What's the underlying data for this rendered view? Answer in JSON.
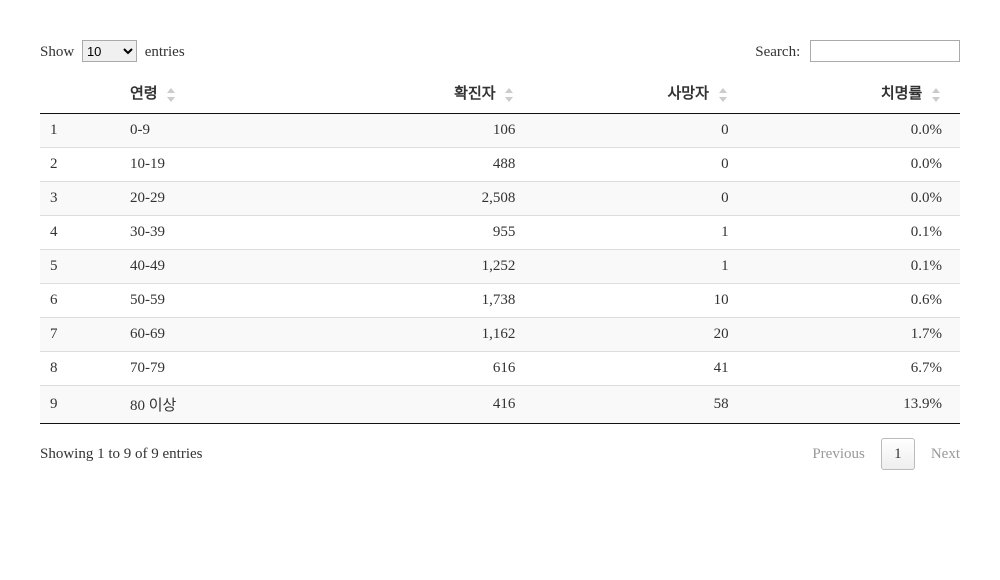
{
  "lengthMenu": {
    "prefix": "Show",
    "suffix": "entries",
    "selected": "10"
  },
  "search": {
    "label": "Search:",
    "value": ""
  },
  "columns": {
    "age": "연령",
    "confirmed": "확진자",
    "deaths": "사망자",
    "fatality": "치명률"
  },
  "rows": [
    {
      "idx": "1",
      "age": "0-9",
      "confirmed": "106",
      "deaths": "0",
      "fatality": "0.0%"
    },
    {
      "idx": "2",
      "age": "10-19",
      "confirmed": "488",
      "deaths": "0",
      "fatality": "0.0%"
    },
    {
      "idx": "3",
      "age": "20-29",
      "confirmed": "2,508",
      "deaths": "0",
      "fatality": "0.0%"
    },
    {
      "idx": "4",
      "age": "30-39",
      "confirmed": "955",
      "deaths": "1",
      "fatality": "0.1%"
    },
    {
      "idx": "5",
      "age": "40-49",
      "confirmed": "1,252",
      "deaths": "1",
      "fatality": "0.1%"
    },
    {
      "idx": "6",
      "age": "50-59",
      "confirmed": "1,738",
      "deaths": "10",
      "fatality": "0.6%"
    },
    {
      "idx": "7",
      "age": "60-69",
      "confirmed": "1,162",
      "deaths": "20",
      "fatality": "1.7%"
    },
    {
      "idx": "8",
      "age": "70-79",
      "confirmed": "616",
      "deaths": "41",
      "fatality": "6.7%"
    },
    {
      "idx": "9",
      "age": "80 이상",
      "confirmed": "416",
      "deaths": "58",
      "fatality": "13.9%"
    }
  ],
  "info": "Showing 1 to 9 of 9 entries",
  "paginate": {
    "previous": "Previous",
    "next": "Next",
    "current": "1"
  }
}
